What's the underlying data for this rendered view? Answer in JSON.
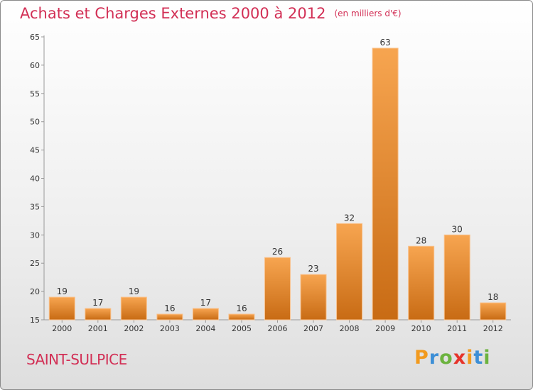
{
  "header": {
    "title": "Achats et Charges Externes 2000 à 2012",
    "unit": "(en milliers d'€)"
  },
  "footer": {
    "commune": "SAINT-SULPICE",
    "logo": [
      "P",
      "r",
      "o",
      "x",
      "i",
      "t",
      "i"
    ],
    "logo_colors": [
      "#f29a1e",
      "#3d8fd6",
      "#6cb33f",
      "#e6332a",
      "#f29a1e",
      "#3d8fd6",
      "#6cb33f"
    ]
  },
  "chart_data": {
    "type": "bar",
    "title": "Achats et Charges Externes 2000 à 2012",
    "categories": [
      "2000",
      "2001",
      "2002",
      "2003",
      "2004",
      "2005",
      "2006",
      "2007",
      "2008",
      "2009",
      "2010",
      "2011",
      "2012"
    ],
    "values": [
      19,
      17,
      19,
      16,
      17,
      16,
      26,
      23,
      32,
      63,
      28,
      30,
      18
    ],
    "ylim": [
      15,
      65
    ],
    "yticks": [
      15,
      20,
      25,
      30,
      35,
      40,
      45,
      50,
      55,
      60,
      65
    ],
    "grid": false,
    "bar_color": "#f08a2a",
    "xlabel": "",
    "ylabel": ""
  }
}
